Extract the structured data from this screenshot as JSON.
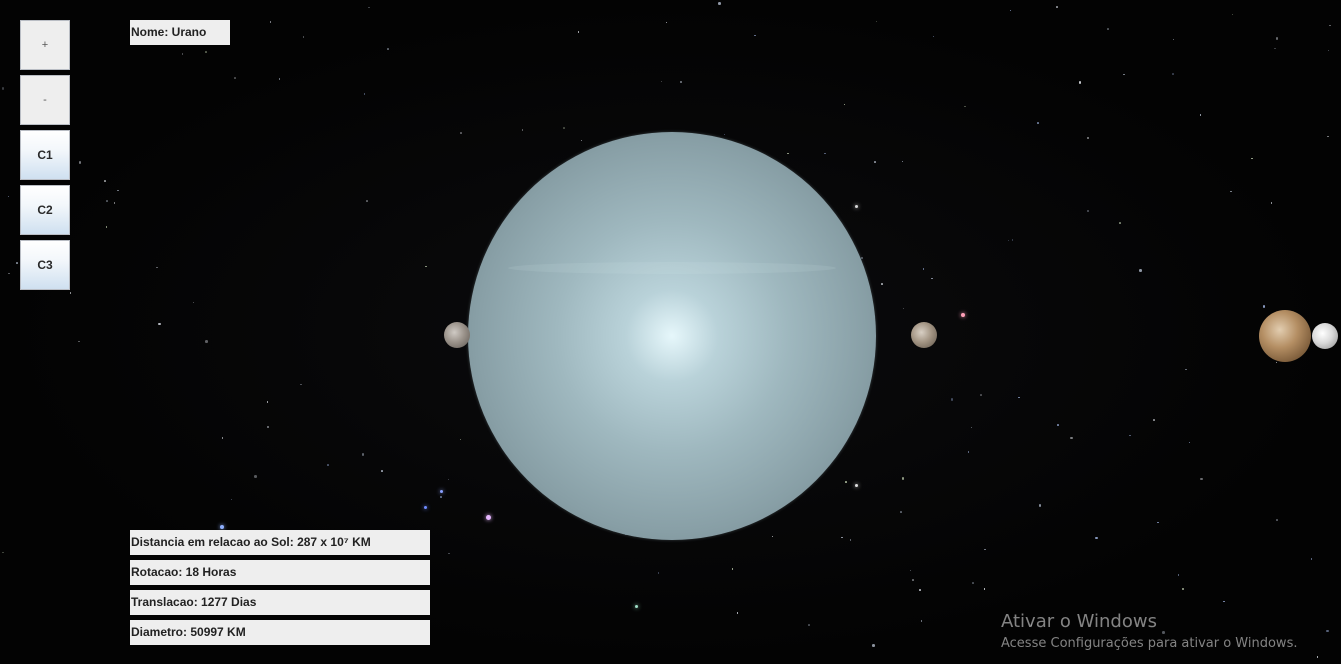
{
  "controls": {
    "zoom_in_label": "+",
    "zoom_out_label": "-",
    "camera1_label": "C1",
    "camera2_label": "C2",
    "camera3_label": "C3"
  },
  "planet": {
    "name_label": "Nome: Urano",
    "distance_label": "Distancia em relacao ao Sol: 287 x 10⁷ KM",
    "rotation_label": "Rotacao: 18 Horas",
    "translation_label": "Translacao: 1277 Dias",
    "diameter_label": "Diametro: 50997 KM"
  },
  "watermark": {
    "title": "Ativar o Windows",
    "subtitle": "Acesse Configurações para ativar o Windows."
  },
  "colors": {
    "background": "#040404",
    "planet": "#9fb8bf",
    "button_face": "#eeeeee",
    "label_face": "#eeeeee"
  }
}
